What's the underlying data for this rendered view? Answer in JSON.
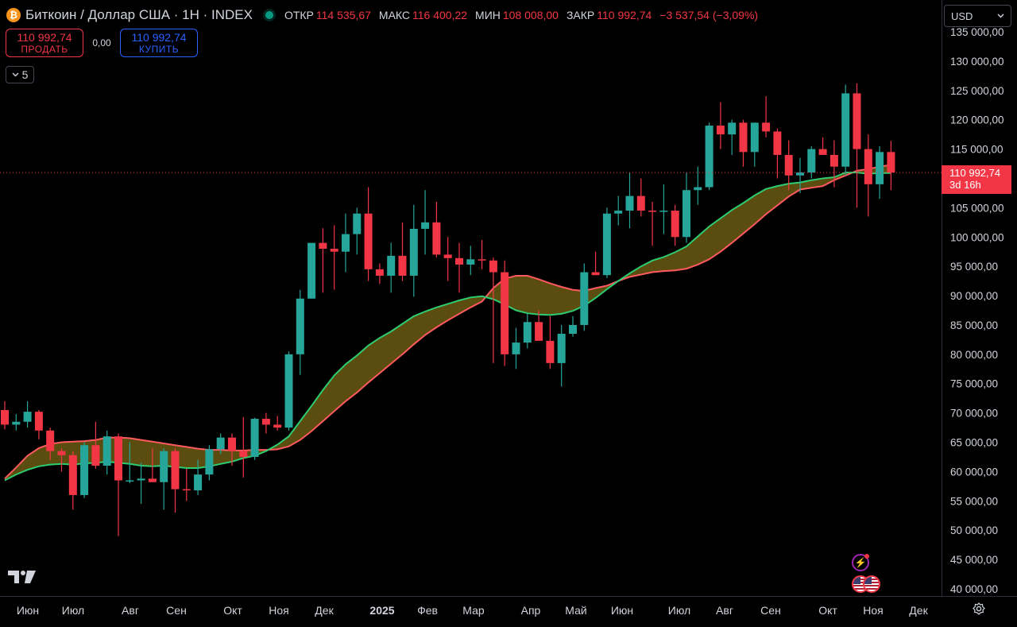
{
  "header": {
    "symbol_icon": "₿",
    "title": "Биткоин / Доллар США · 1Н · INDEX",
    "open_label": "ОТКР",
    "open_value": "114 535,67",
    "high_label": "МАКС",
    "high_value": "116 400,22",
    "low_label": "МИН",
    "low_value": "108 008,00",
    "close_label": "ЗАКР",
    "close_value": "110 992,74",
    "change_value": "−3 537,54 (−3,09%)"
  },
  "trade": {
    "sell_price": "110 992,74",
    "sell_label": "ПРОДАТЬ",
    "spread": "0,00",
    "buy_price": "110 992,74",
    "buy_label": "КУПИТЬ"
  },
  "indicators_toggle": {
    "icon": "chevron-down-icon",
    "count": "5"
  },
  "currency_select": {
    "value": "USD"
  },
  "last_price_tag": {
    "price": "110 992,74",
    "countdown": "3d 16h"
  },
  "colors": {
    "up": "#26a69a",
    "down": "#f23645",
    "ema_fast": "#2ecc71",
    "ema_slow": "#ff5a5f",
    "fill": "#6b5a12"
  },
  "time_axis_labels": [
    "Июн",
    "Июл",
    "Авг",
    "Сен",
    "Окт",
    "Ноя",
    "Дек",
    "2025",
    "Фев",
    "Мар",
    "Апр",
    "Май",
    "Июн",
    "Июл",
    "Авг",
    "Сен",
    "Окт",
    "Ноя",
    "Дек"
  ],
  "chart_data": {
    "type": "candlestick",
    "price_scale": [
      40000,
      45000,
      50000,
      55000,
      60000,
      65000,
      70000,
      75000,
      80000,
      85000,
      90000,
      95000,
      100000,
      105000,
      110000,
      115000,
      120000,
      125000,
      130000,
      135000
    ],
    "price_scale_labels": [
      "40 000,00",
      "45 000,00",
      "50 000,00",
      "55 000,00",
      "60 000,00",
      "65 000,00",
      "70 000,00",
      "75 000,00",
      "80 000,00",
      "85 000,00",
      "90 000,00",
      "95 000,00",
      "100 000,00",
      "105 000,00",
      "110 000,00",
      "115 000,00",
      "120 000,00",
      "125 000,00",
      "130 000,00",
      "135 000,00"
    ],
    "interval": "1W",
    "candles": [
      [
        70500,
        72000,
        67200,
        68000
      ],
      [
        68000,
        69800,
        67000,
        68500
      ],
      [
        68500,
        72000,
        67500,
        70200
      ],
      [
        70200,
        70500,
        65500,
        67000
      ],
      [
        67000,
        67500,
        62000,
        63500
      ],
      [
        63500,
        64000,
        60000,
        62800
      ],
      [
        62800,
        63500,
        53500,
        56000
      ],
      [
        56000,
        65000,
        55500,
        64500
      ],
      [
        64500,
        68500,
        60500,
        61000
      ],
      [
        61000,
        67000,
        59500,
        66000
      ],
      [
        66000,
        66500,
        49000,
        58500
      ],
      [
        58500,
        65000,
        58000,
        58500
      ],
      [
        58500,
        61500,
        54500,
        58800
      ],
      [
        58800,
        64000,
        58200,
        58200
      ],
      [
        58200,
        64000,
        53500,
        63500
      ],
      [
        63500,
        64000,
        53000,
        57000
      ],
      [
        57000,
        60500,
        55000,
        56800
      ],
      [
        56800,
        62000,
        56000,
        59500
      ],
      [
        59500,
        64500,
        58500,
        63800
      ],
      [
        63800,
        66500,
        63000,
        65800
      ],
      [
        65800,
        66500,
        61000,
        63500
      ],
      [
        63500,
        69300,
        59000,
        62500
      ],
      [
        62500,
        69200,
        62000,
        69000
      ],
      [
        69000,
        70000,
        66500,
        68000
      ],
      [
        68000,
        69500,
        67000,
        67500
      ],
      [
        67500,
        80500,
        67000,
        80000
      ],
      [
        80000,
        91000,
        76500,
        89500
      ],
      [
        89500,
        98500,
        89500,
        99000
      ],
      [
        99000,
        101500,
        90500,
        98000
      ],
      [
        98000,
        102000,
        91000,
        97500
      ],
      [
        97500,
        104000,
        94000,
        100500
      ],
      [
        100500,
        105000,
        97000,
        104000
      ],
      [
        104000,
        108500,
        92500,
        94500
      ],
      [
        94500,
        95500,
        92000,
        93400
      ],
      [
        93400,
        99000,
        90500,
        96800
      ],
      [
        96800,
        102500,
        92500,
        93400
      ],
      [
        93400,
        105500,
        89800,
        101400
      ],
      [
        101400,
        108000,
        97000,
        102500
      ],
      [
        102500,
        106000,
        96500,
        97000
      ],
      [
        97000,
        100000,
        92500,
        96400
      ],
      [
        96400,
        99000,
        90500,
        95300
      ],
      [
        95300,
        98500,
        93500,
        96200
      ],
      [
        96200,
        99500,
        94500,
        96000
      ],
      [
        96000,
        96500,
        78500,
        94000
      ],
      [
        94000,
        96000,
        78000,
        80000
      ],
      [
        80000,
        84500,
        77500,
        82000
      ],
      [
        82000,
        87000,
        81000,
        85500
      ],
      [
        85500,
        87500,
        82500,
        82300
      ],
      [
        82300,
        86500,
        77500,
        78500
      ],
      [
        78500,
        85000,
        74500,
        83500
      ],
      [
        83500,
        86500,
        83000,
        85000
      ],
      [
        85000,
        95500,
        84000,
        94000
      ],
      [
        94000,
        97500,
        93500,
        93500
      ],
      [
        93500,
        105000,
        93000,
        104000
      ],
      [
        104000,
        107000,
        102000,
        104500
      ],
      [
        104500,
        111000,
        101500,
        107000
      ],
      [
        107000,
        110000,
        103500,
        104500
      ],
      [
        104500,
        106000,
        98500,
        104300
      ],
      [
        104300,
        109000,
        100500,
        104500
      ],
      [
        104500,
        105500,
        98500,
        100000
      ],
      [
        100000,
        111000,
        99000,
        108000
      ],
      [
        108000,
        112000,
        105500,
        108500
      ],
      [
        108500,
        119500,
        108000,
        119000
      ],
      [
        119000,
        123000,
        115000,
        117500
      ],
      [
        117500,
        120000,
        114000,
        119500
      ],
      [
        119500,
        120000,
        112000,
        114500
      ],
      [
        114500,
        119500,
        112000,
        119500
      ],
      [
        119500,
        124000,
        117000,
        118000
      ],
      [
        118000,
        118500,
        110000,
        114000
      ],
      [
        114000,
        116500,
        108000,
        110500
      ],
      [
        110500,
        113500,
        107500,
        111000
      ],
      [
        111000,
        115500,
        110000,
        115000
      ],
      [
        115000,
        117000,
        114000,
        114000
      ],
      [
        114000,
        116500,
        108500,
        112000
      ],
      [
        112000,
        126000,
        110500,
        124500
      ],
      [
        124500,
        126200,
        105000,
        115000
      ],
      [
        115000,
        117500,
        103500,
        109000
      ],
      [
        109000,
        115500,
        106500,
        114500
      ],
      [
        114500,
        116400,
        108008,
        110992.74
      ]
    ],
    "ema_fast": [
      58500,
      59500,
      60300,
      60900,
      61200,
      61300,
      61200,
      61400,
      61500,
      61700,
      61500,
      61300,
      61000,
      60900,
      61000,
      60800,
      60600,
      60600,
      60900,
      61300,
      61700,
      62300,
      62700,
      63500,
      64600,
      66000,
      68600,
      71200,
      73900,
      76400,
      78300,
      79800,
      81500,
      82800,
      83900,
      85200,
      86500,
      87300,
      88000,
      88600,
      89200,
      89700,
      89900,
      89400,
      88500,
      87500,
      87000,
      86800,
      86700,
      86900,
      87400,
      88300,
      89600,
      91100,
      92500,
      93800,
      95000,
      96000,
      96600,
      97400,
      98400,
      100100,
      101800,
      103200,
      104600,
      105800,
      107100,
      108200,
      108700,
      109100,
      109300,
      109700,
      110000,
      110200,
      111000,
      111000,
      110800,
      110900,
      110900
    ],
    "ema_slow": [
      58800,
      60700,
      62700,
      64000,
      64700,
      65000,
      65100,
      65200,
      65400,
      65800,
      65800,
      65700,
      65400,
      65100,
      64800,
      64500,
      64200,
      63900,
      63700,
      63700,
      63600,
      63600,
      63700,
      63700,
      63800,
      64300,
      65400,
      66900,
      68600,
      70300,
      72000,
      73500,
      75200,
      76800,
      78400,
      80000,
      81700,
      83300,
      84600,
      85800,
      86900,
      88000,
      89000,
      91300,
      92900,
      93400,
      93400,
      92800,
      92100,
      91500,
      91000,
      90800,
      91300,
      91700,
      92500,
      93200,
      93600,
      94000,
      94200,
      94300,
      94600,
      95300,
      96200,
      97500,
      99000,
      100600,
      102200,
      103900,
      105400,
      106900,
      108100,
      108400,
      108700,
      109700,
      110500,
      111300,
      111600,
      112000,
      112300
    ]
  },
  "icons": {
    "flash": "flash-icon",
    "flags": "us-flag-icon",
    "settings": "settings-icon",
    "logo": "tradingview-logo"
  }
}
